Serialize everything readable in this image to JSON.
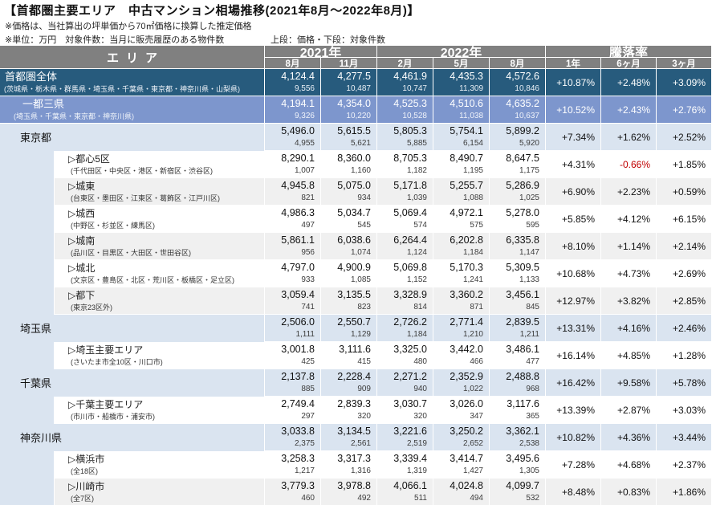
{
  "title": "【首都圏主要エリア　中古マンション相場推移(2021年8月～2022年8月)】",
  "notes": {
    "price_note": "※価格は、当社算出の坪単価から70㎡価格に換算した推定価格",
    "unit_note": "※単位：万円　対象件数：当月に販売履歴のある物件数",
    "legend_note": "上段：価格・下段：対象件数"
  },
  "header": {
    "area_label": "エリア",
    "group_labels": [
      "2021年",
      "2022年",
      "騰落率"
    ],
    "col_labels": [
      "8月",
      "11月",
      "2月",
      "5月",
      "8月",
      "1年",
      "6ヶ月",
      "3ヶ月"
    ]
  },
  "colors": {
    "header_gray": "#808080",
    "metro_blue": "#275B7D",
    "three_blue": "#7D96CD",
    "pref_blue": "#DAE4F0",
    "sub_gray": "#F0F0F0",
    "negative_red": "#C00000"
  },
  "chart_data": {
    "type": "table",
    "title": "首都圏主要エリア 中古マンション相場推移(2021年8月～2022年8月)",
    "columns": [
      "エリア",
      "2021年8月",
      "2021年11月",
      "2022年2月",
      "2022年5月",
      "2022年8月",
      "騰落率1年",
      "騰落率6ヶ月",
      "騰落率3ヶ月"
    ],
    "rows": [
      {
        "name": "首都圏全体",
        "sub": "(茨城県・栃木県・群馬県・埼玉県・千葉県・東京都・神奈川県・山梨県)",
        "level": "metro",
        "shade": "",
        "prices": [
          "4,124.4",
          "4,277.5",
          "4,461.9",
          "4,435.3",
          "4,572.6"
        ],
        "counts": [
          "9,556",
          "10,487",
          "10,747",
          "11,309",
          "10,846"
        ],
        "rates": [
          "+10.87%",
          "+2.48%",
          "+3.09%"
        ]
      },
      {
        "name": "一都三県",
        "sub": "(埼玉県・千葉県・東京都・神奈川県)",
        "level": "three",
        "shade": "",
        "prices": [
          "4,194.1",
          "4,354.0",
          "4,525.3",
          "4,510.6",
          "4,635.2"
        ],
        "counts": [
          "9,326",
          "10,220",
          "10,528",
          "11,038",
          "10,637"
        ],
        "rates": [
          "+10.52%",
          "+2.43%",
          "+2.76%"
        ]
      },
      {
        "name": "東京都",
        "sub": "",
        "level": "pref",
        "shade": "",
        "prices": [
          "5,496.0",
          "5,615.5",
          "5,805.3",
          "5,754.1",
          "5,899.2"
        ],
        "counts": [
          "4,955",
          "5,621",
          "5,885",
          "6,154",
          "5,920"
        ],
        "rates": [
          "+7.34%",
          "+1.62%",
          "+2.52%"
        ]
      },
      {
        "name": "▷都心5区",
        "sub": "(千代田区・中央区・港区・新宿区・渋谷区)",
        "level": "sub",
        "shade": "white",
        "prices": [
          "8,290.1",
          "8,360.0",
          "8,705.3",
          "8,490.7",
          "8,647.5"
        ],
        "counts": [
          "1,007",
          "1,160",
          "1,182",
          "1,195",
          "1,175"
        ],
        "rates": [
          "+4.31%",
          "-0.66%",
          "+1.85%"
        ]
      },
      {
        "name": "▷城東",
        "sub": "(台東区・墨田区・江東区・葛飾区・江戸川区)",
        "level": "sub",
        "shade": "gray",
        "prices": [
          "4,945.8",
          "5,075.0",
          "5,171.8",
          "5,255.7",
          "5,286.9"
        ],
        "counts": [
          "821",
          "934",
          "1,039",
          "1,088",
          "1,025"
        ],
        "rates": [
          "+6.90%",
          "+2.23%",
          "+0.59%"
        ]
      },
      {
        "name": "▷城西",
        "sub": "(中野区・杉並区・練馬区)",
        "level": "sub",
        "shade": "white",
        "prices": [
          "4,986.3",
          "5,034.7",
          "5,069.4",
          "4,972.1",
          "5,278.0"
        ],
        "counts": [
          "497",
          "545",
          "574",
          "575",
          "595"
        ],
        "rates": [
          "+5.85%",
          "+4.12%",
          "+6.15%"
        ]
      },
      {
        "name": "▷城南",
        "sub": "(品川区・目黒区・大田区・世田谷区)",
        "level": "sub",
        "shade": "gray",
        "prices": [
          "5,861.1",
          "6,038.6",
          "6,264.4",
          "6,202.8",
          "6,335.8"
        ],
        "counts": [
          "956",
          "1,074",
          "1,124",
          "1,184",
          "1,147"
        ],
        "rates": [
          "+8.10%",
          "+1.14%",
          "+2.14%"
        ]
      },
      {
        "name": "▷城北",
        "sub": "(文京区・豊島区・北区・荒川区・板橋区・足立区)",
        "level": "sub",
        "shade": "white",
        "prices": [
          "4,797.0",
          "4,900.9",
          "5,069.8",
          "5,170.3",
          "5,309.5"
        ],
        "counts": [
          "933",
          "1,085",
          "1,152",
          "1,241",
          "1,133"
        ],
        "rates": [
          "+10.68%",
          "+4.73%",
          "+2.69%"
        ]
      },
      {
        "name": "▷都下",
        "sub": "(東京23区外)",
        "level": "sub",
        "shade": "gray",
        "prices": [
          "3,059.4",
          "3,135.5",
          "3,328.9",
          "3,360.2",
          "3,456.1"
        ],
        "counts": [
          "741",
          "823",
          "814",
          "871",
          "845"
        ],
        "rates": [
          "+12.97%",
          "+3.82%",
          "+2.85%"
        ]
      },
      {
        "name": "埼玉県",
        "sub": "",
        "level": "pref",
        "shade": "",
        "prices": [
          "2,506.0",
          "2,550.7",
          "2,726.2",
          "2,771.4",
          "2,839.5"
        ],
        "counts": [
          "1,111",
          "1,129",
          "1,184",
          "1,210",
          "1,211"
        ],
        "rates": [
          "+13.31%",
          "+4.16%",
          "+2.46%"
        ]
      },
      {
        "name": "▷埼玉主要エリア",
        "sub": "(さいたま市全10区・川口市)",
        "level": "sub",
        "shade": "white",
        "prices": [
          "3,001.8",
          "3,111.6",
          "3,325.0",
          "3,442.0",
          "3,486.1"
        ],
        "counts": [
          "425",
          "415",
          "480",
          "466",
          "477"
        ],
        "rates": [
          "+16.14%",
          "+4.85%",
          "+1.28%"
        ]
      },
      {
        "name": "千葉県",
        "sub": "",
        "level": "pref",
        "shade": "",
        "prices": [
          "2,137.8",
          "2,228.4",
          "2,271.2",
          "2,352.9",
          "2,488.8"
        ],
        "counts": [
          "885",
          "909",
          "940",
          "1,022",
          "968"
        ],
        "rates": [
          "+16.42%",
          "+9.58%",
          "+5.78%"
        ]
      },
      {
        "name": "▷千葉主要エリア",
        "sub": "(市川市・船橋市・浦安市)",
        "level": "sub",
        "shade": "white",
        "prices": [
          "2,749.4",
          "2,839.3",
          "3,030.7",
          "3,026.0",
          "3,117.6"
        ],
        "counts": [
          "297",
          "320",
          "320",
          "347",
          "365"
        ],
        "rates": [
          "+13.39%",
          "+2.87%",
          "+3.03%"
        ]
      },
      {
        "name": "神奈川県",
        "sub": "",
        "level": "pref",
        "shade": "",
        "prices": [
          "3,033.8",
          "3,134.5",
          "3,221.6",
          "3,250.2",
          "3,362.1"
        ],
        "counts": [
          "2,375",
          "2,561",
          "2,519",
          "2,652",
          "2,538"
        ],
        "rates": [
          "+10.82%",
          "+4.36%",
          "+3.44%"
        ]
      },
      {
        "name": "▷横浜市",
        "sub": "(全18区)",
        "level": "sub",
        "shade": "white",
        "prices": [
          "3,258.3",
          "3,317.3",
          "3,339.4",
          "3,414.7",
          "3,495.6"
        ],
        "counts": [
          "1,217",
          "1,316",
          "1,319",
          "1,427",
          "1,305"
        ],
        "rates": [
          "+7.28%",
          "+4.68%",
          "+2.37%"
        ]
      },
      {
        "name": "▷川崎市",
        "sub": "(全7区)",
        "level": "sub",
        "shade": "gray",
        "prices": [
          "3,779.3",
          "3,978.8",
          "4,066.1",
          "4,024.8",
          "4,099.7"
        ],
        "counts": [
          "460",
          "492",
          "511",
          "494",
          "532"
        ],
        "rates": [
          "+8.48%",
          "+0.83%",
          "+1.86%"
        ]
      }
    ]
  }
}
